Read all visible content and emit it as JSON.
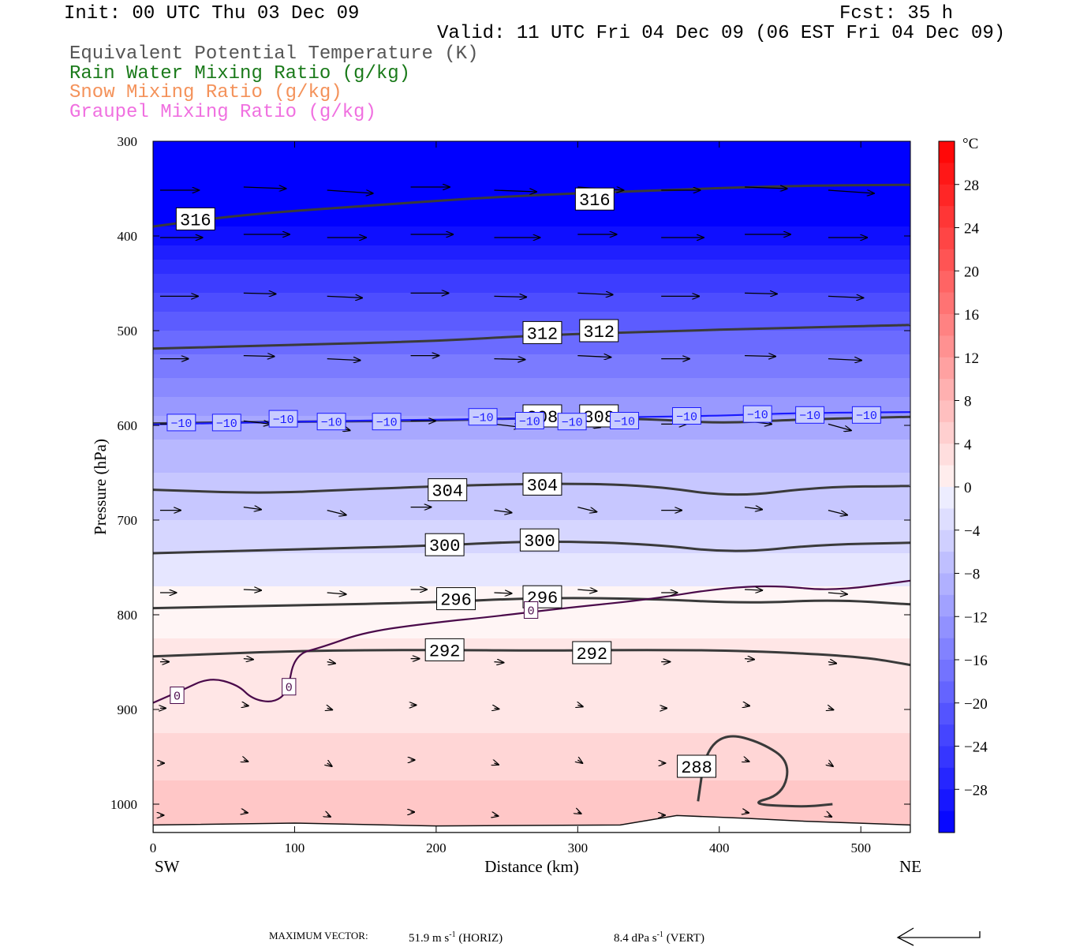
{
  "header": {
    "init": "Init: 00 UTC Thu 03 Dec 09",
    "fcst": "Fcst:   35 h",
    "valid": "Valid: 11 UTC Fri 04 Dec 09 (06 EST Fri 04 Dec 09)",
    "fields": [
      {
        "label": "Equivalent Potential Temperature (K)",
        "color": "#555555"
      },
      {
        "label": "Rain Water Mixing Ratio (g/kg)",
        "color": "#1a7a1a"
      },
      {
        "label": "Snow Mixing Ratio (g/kg)",
        "color": "#f4925a"
      },
      {
        "label": "Graupel Mixing Ratio (g/kg)",
        "color": "#f070e0"
      }
    ]
  },
  "footer": {
    "max_vector": "MAXIMUM VECTOR:",
    "horiz_value": "51.9 m s",
    "horiz_unit": "(HORIZ)",
    "vert_value": "8.4 dPa s",
    "vert_unit": "(VERT)",
    "exp": "-1"
  },
  "chart_data": {
    "type": "heatmap",
    "description_fields": "temperature shading (°C) with theta-e contours and wind vectors",
    "xlabel": "Distance (km)",
    "ylabel": "Pressure (hPa)",
    "xlim": [
      0,
      535
    ],
    "ylim": [
      1030,
      300
    ],
    "x_ticks": [
      0,
      100,
      200,
      300,
      400,
      500
    ],
    "y_ticks": [
      300,
      400,
      500,
      600,
      700,
      800,
      900,
      1000
    ],
    "x_end_labels": {
      "left": "SW",
      "right": "NE"
    },
    "colorbar": {
      "unit": "°C",
      "ticks": [
        28,
        24,
        20,
        16,
        12,
        8,
        4,
        0,
        -4,
        -8,
        -12,
        -16,
        -20,
        -24,
        -28
      ],
      "tick_labels": [
        "28",
        "24",
        "20",
        "16",
        "12",
        "8",
        "4",
        "0",
        "−4",
        "−8",
        "−12",
        "−16",
        "−20",
        "−24",
        "−28"
      ],
      "range": [
        -32,
        32
      ]
    },
    "temperature_profile": [
      {
        "p": 300,
        "t": -40
      },
      {
        "p": 400,
        "t": -30
      },
      {
        "p": 450,
        "t": -24
      },
      {
        "p": 500,
        "t": -19
      },
      {
        "p": 550,
        "t": -15
      },
      {
        "p": 600,
        "t": -10
      },
      {
        "p": 650,
        "t": -7
      },
      {
        "p": 700,
        "t": -5
      },
      {
        "p": 750,
        "t": -2
      },
      {
        "p": 800,
        "t": 0.5
      },
      {
        "p": 850,
        "t": 1.5
      },
      {
        "p": 900,
        "t": 2
      },
      {
        "p": 950,
        "t": 4
      },
      {
        "p": 1000,
        "t": 6
      },
      {
        "p": 1030,
        "t": 6
      }
    ],
    "theta_e_contours": [
      {
        "value": 316,
        "label": "316",
        "points": [
          [
            0,
            390
          ],
          [
            60,
            378
          ],
          [
            150,
            368
          ],
          [
            250,
            358
          ],
          [
            350,
            352
          ],
          [
            450,
            347
          ],
          [
            535,
            346
          ]
        ],
        "labels": [
          [
            30,
            382
          ],
          [
            312,
            361
          ]
        ]
      },
      {
        "value": 312,
        "label": "312",
        "points": [
          [
            0,
            519
          ],
          [
            100,
            515
          ],
          [
            200,
            511
          ],
          [
            270,
            505
          ],
          [
            350,
            501
          ],
          [
            450,
            497
          ],
          [
            535,
            494
          ]
        ],
        "labels": [
          [
            275,
            502
          ],
          [
            315,
            500
          ]
        ]
      },
      {
        "value": 308,
        "label": "308",
        "points": [
          [
            0,
            598
          ],
          [
            100,
            596
          ],
          [
            200,
            595
          ],
          [
            270,
            592
          ],
          [
            350,
            593
          ],
          [
            400,
            598
          ],
          [
            450,
            594
          ],
          [
            535,
            591
          ]
        ],
        "labels": [
          [
            275,
            590
          ],
          [
            315,
            590
          ]
        ]
      },
      {
        "value": 304,
        "label": "304",
        "points": [
          [
            0,
            668
          ],
          [
            80,
            672
          ],
          [
            150,
            667
          ],
          [
            270,
            661
          ],
          [
            350,
            663
          ],
          [
            410,
            676
          ],
          [
            470,
            665
          ],
          [
            535,
            664
          ]
        ],
        "labels": [
          [
            208,
            668
          ],
          [
            275,
            662
          ]
        ]
      },
      {
        "value": 300,
        "label": "300",
        "points": [
          [
            0,
            735
          ],
          [
            100,
            731
          ],
          [
            200,
            727
          ],
          [
            270,
            722
          ],
          [
            350,
            725
          ],
          [
            410,
            735
          ],
          [
            470,
            726
          ],
          [
            535,
            724
          ]
        ],
        "labels": [
          [
            206,
            726
          ],
          [
            273,
            721
          ]
        ]
      },
      {
        "value": 296,
        "label": "296",
        "points": [
          [
            0,
            793
          ],
          [
            100,
            790
          ],
          [
            200,
            787
          ],
          [
            270,
            782
          ],
          [
            350,
            783
          ],
          [
            420,
            788
          ],
          [
            480,
            784
          ],
          [
            535,
            789
          ]
        ],
        "labels": [
          [
            214,
            783
          ],
          [
            275,
            781
          ]
        ]
      },
      {
        "value": 292,
        "label": "292",
        "points": [
          [
            0,
            844
          ],
          [
            100,
            838
          ],
          [
            200,
            837
          ],
          [
            270,
            838
          ],
          [
            350,
            837
          ],
          [
            420,
            838
          ],
          [
            500,
            844
          ],
          [
            535,
            853
          ]
        ],
        "labels": [
          [
            206,
            837
          ],
          [
            310,
            840
          ]
        ]
      },
      {
        "value": 288,
        "label": "288",
        "points": [
          [
            385,
            997
          ],
          [
            390,
            945
          ],
          [
            405,
            925
          ],
          [
            430,
            935
          ],
          [
            450,
            955
          ],
          [
            445,
            990
          ],
          [
            420,
            1000
          ],
          [
            460,
            1003
          ],
          [
            480,
            1000
          ]
        ],
        "labels": [
          [
            384,
            960
          ]
        ]
      }
    ],
    "isotherms": [
      {
        "value": -10,
        "label": "−10",
        "color": "#1a1aff",
        "points": [
          [
            0,
            599
          ],
          [
            100,
            596
          ],
          [
            200,
            594
          ],
          [
            300,
            592
          ],
          [
            400,
            590
          ],
          [
            450,
            587
          ],
          [
            535,
            586
          ]
        ],
        "labels": [
          [
            20,
            597
          ],
          [
            52,
            597
          ],
          [
            92,
            593
          ],
          [
            126,
            596
          ],
          [
            165,
            596
          ],
          [
            233,
            591
          ],
          [
            266,
            595
          ],
          [
            296,
            596
          ],
          [
            333,
            595
          ],
          [
            377,
            590
          ],
          [
            427,
            588
          ],
          [
            464,
            589
          ],
          [
            504,
            589
          ]
        ]
      },
      {
        "value": 0,
        "label": "0",
        "color": "#4a0a4a",
        "points": [
          [
            0,
            893
          ],
          [
            20,
            880
          ],
          [
            40,
            866
          ],
          [
            60,
            874
          ],
          [
            70,
            889
          ],
          [
            85,
            893
          ],
          [
            95,
            882
          ],
          [
            100,
            842
          ],
          [
            120,
            834
          ],
          [
            150,
            818
          ],
          [
            200,
            808
          ],
          [
            240,
            802
          ],
          [
            290,
            793
          ],
          [
            350,
            784
          ],
          [
            400,
            772
          ],
          [
            440,
            769
          ],
          [
            480,
            775
          ],
          [
            535,
            764
          ]
        ],
        "labels": [
          [
            17,
            885
          ],
          [
            96,
            876
          ],
          [
            267,
            795
          ]
        ]
      }
    ],
    "wind_vectors": "rows of rightward-pointing arrows; longest aloft (~300-600 hPa), shortening toward the surface"
  }
}
